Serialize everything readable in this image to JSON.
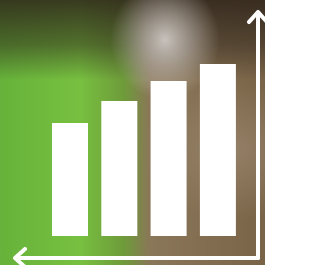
{
  "chart_data": {
    "type": "bar",
    "categories": [
      null,
      null,
      null,
      null
    ],
    "values": [
      113,
      135,
      155,
      172
    ],
    "color": "#ffffff",
    "ylim": [
      0,
      236
    ]
  }
}
